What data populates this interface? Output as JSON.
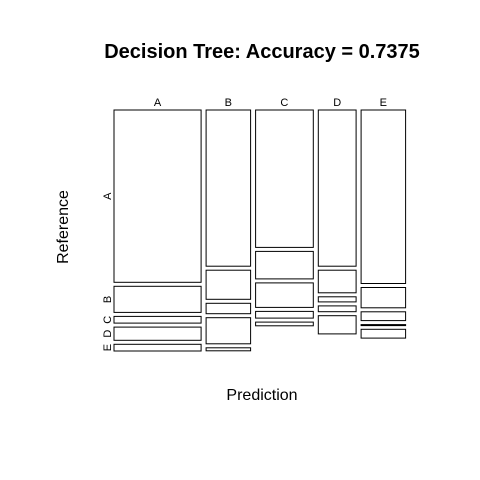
{
  "chart_data": {
    "type": "mosaic",
    "title": "Decision Tree: Accuracy = 0.7375",
    "xlabel": "Prediction",
    "ylabel": "Reference",
    "prediction_levels": [
      "A",
      "B",
      "C",
      "D",
      "E"
    ],
    "reference_levels": [
      "A",
      "B",
      "C",
      "D",
      "E"
    ],
    "prediction_shares": [
      0.311,
      0.159,
      0.206,
      0.135,
      0.159
    ],
    "reference_shares_within_prediction": [
      [
        0.746,
        0.113,
        0.029,
        0.057,
        0.029
      ],
      [
        0.676,
        0.126,
        0.045,
        0.113,
        0.013
      ],
      [
        0.595,
        0.119,
        0.106,
        0.029,
        0.016
      ],
      [
        0.676,
        0.098,
        0.022,
        0.025,
        0.079
      ],
      [
        0.751,
        0.088,
        0.038,
        0.003,
        0.038
      ]
    ]
  }
}
